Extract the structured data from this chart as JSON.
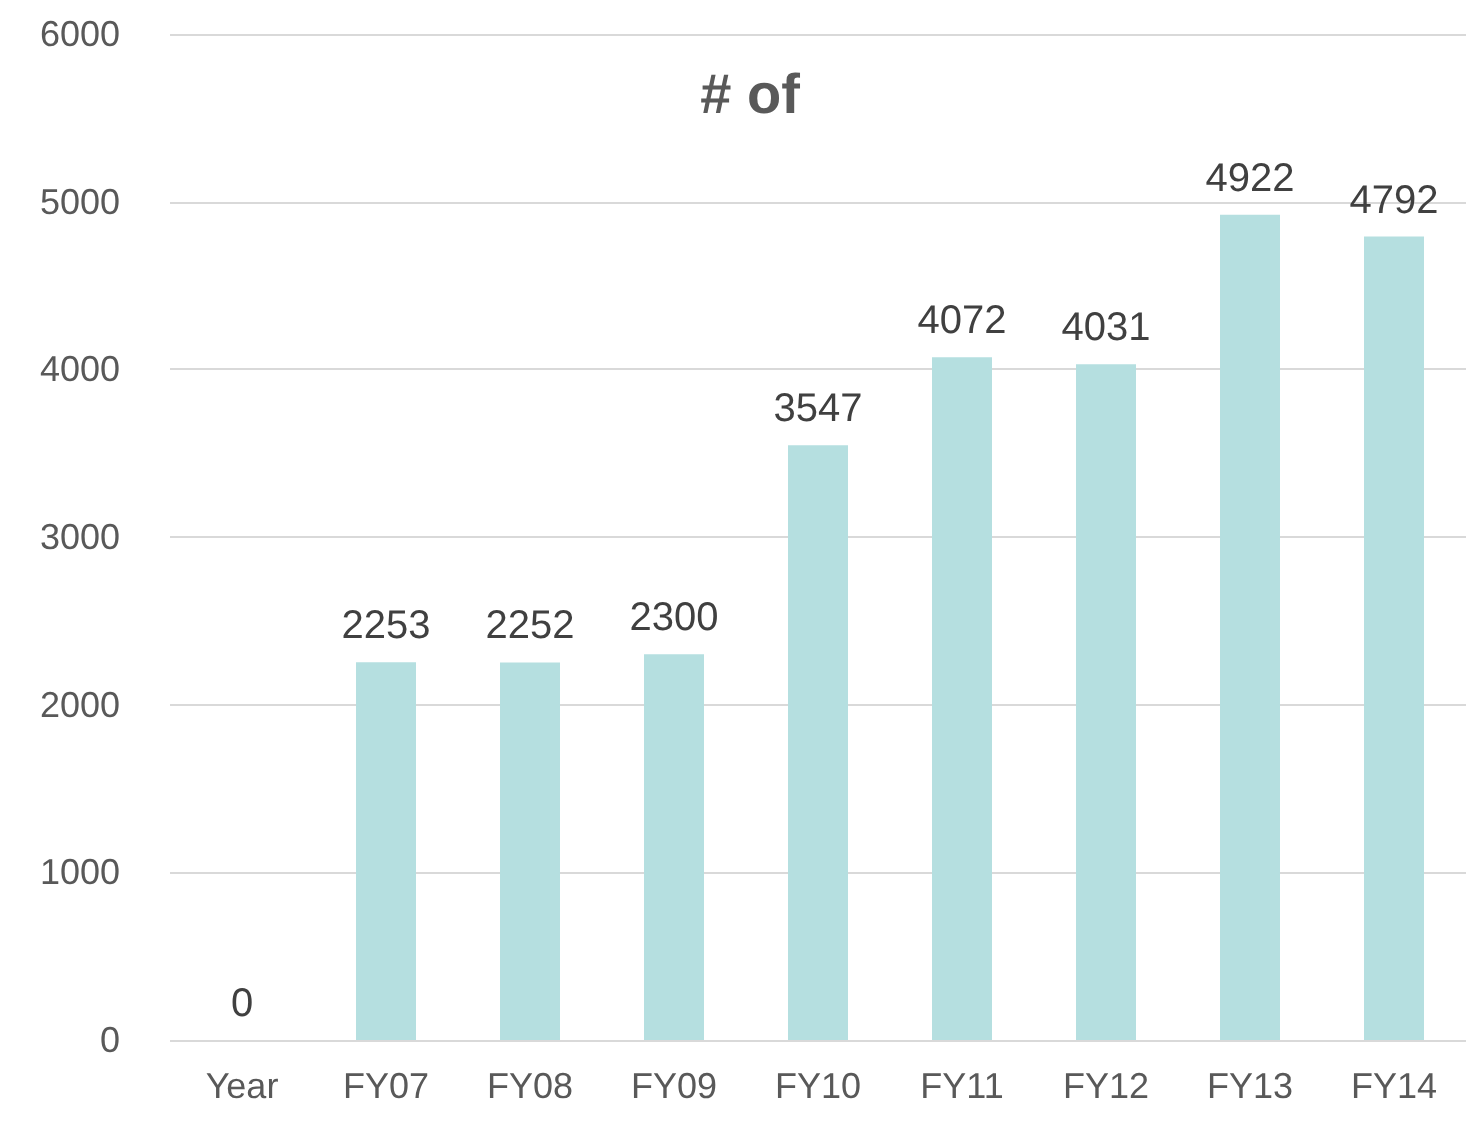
{
  "chart_data": {
    "type": "bar",
    "title": "# of",
    "categories": [
      "Year",
      "FY07",
      "FY08",
      "FY09",
      "FY10",
      "FY11",
      "FY12",
      "FY13",
      "FY14"
    ],
    "values": [
      0,
      2253,
      2252,
      2300,
      3547,
      4072,
      4031,
      4922,
      4792
    ],
    "color": "#b5dfe0",
    "ylim": [
      0,
      6000
    ],
    "yticks": [
      0,
      1000,
      2000,
      3000,
      4000,
      5000,
      6000
    ],
    "grid": "y",
    "data_labels": true
  }
}
